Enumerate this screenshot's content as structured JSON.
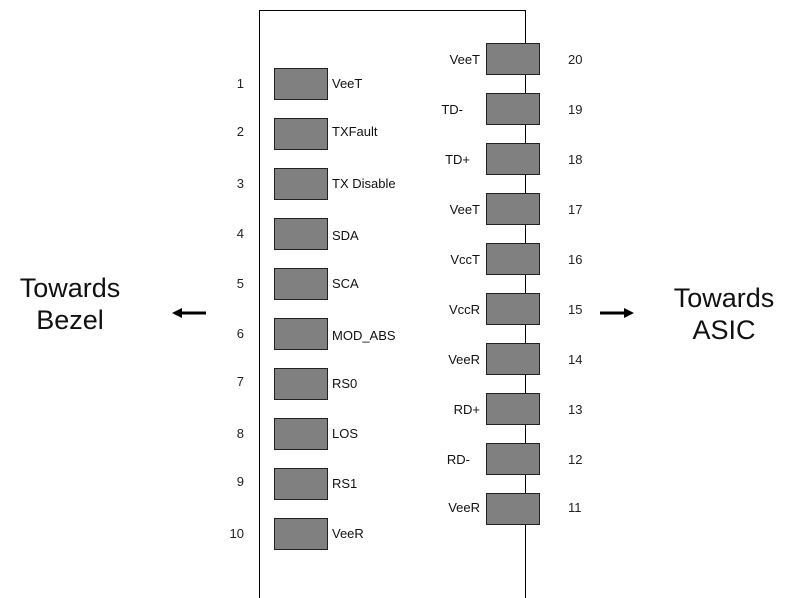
{
  "left_side": {
    "line1": "Towards",
    "line2": "Bezel"
  },
  "right_side": {
    "line1": "Towards",
    "line2": "ASIC"
  },
  "left_pins": [
    {
      "number": "1",
      "label": "VeeT"
    },
    {
      "number": "2",
      "label": "TXFault"
    },
    {
      "number": "3",
      "label": "TX Disable"
    },
    {
      "number": "4",
      "label": "SDA"
    },
    {
      "number": "5",
      "label": "SCA"
    },
    {
      "number": "6",
      "label": "MOD_ABS"
    },
    {
      "number": "7",
      "label": "RS0"
    },
    {
      "number": "8",
      "label": "LOS"
    },
    {
      "number": "9",
      "label": "RS1"
    },
    {
      "number": "10",
      "label": "VeeR"
    }
  ],
  "right_pins": [
    {
      "number": "20",
      "label": "VeeT"
    },
    {
      "number": "19",
      "label": "TD-"
    },
    {
      "number": "18",
      "label": "TD+"
    },
    {
      "number": "17",
      "label": "VeeT"
    },
    {
      "number": "16",
      "label": "VccT"
    },
    {
      "number": "15",
      "label": "VccR"
    },
    {
      "number": "14",
      "label": "VeeR"
    },
    {
      "number": "13",
      "label": "RD+"
    },
    {
      "number": "12",
      "label": "RD-"
    },
    {
      "number": "11",
      "label": "VeeR"
    }
  ],
  "colors": {
    "pad": "#808080",
    "outline": "#000000"
  },
  "icons": {
    "left_arrow": "arrow-left-icon",
    "right_arrow": "arrow-right-icon"
  }
}
